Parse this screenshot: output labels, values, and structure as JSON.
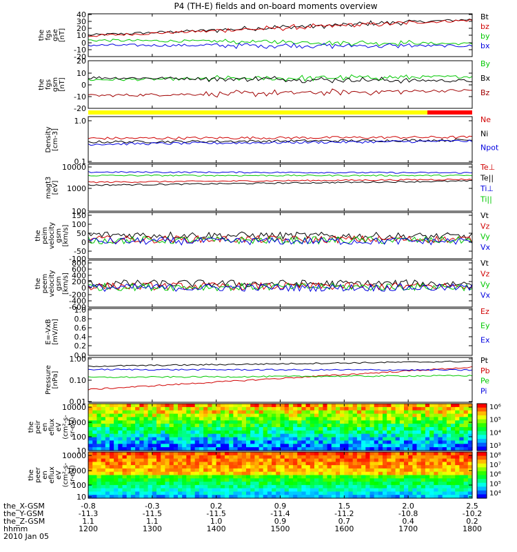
{
  "chart_data": {
    "type": "line",
    "title": "P4 (TH-E) fields and on-board moments overview",
    "x_axis": {
      "rows": [
        {
          "label": "the_X-GSM",
          "values": [
            "-0.8",
            "-0.3",
            "0.2",
            "0.9",
            "1.5",
            "2.0",
            "2.5"
          ]
        },
        {
          "label": "the_Y-GSM",
          "values": [
            "-11.3",
            "-11.5",
            "-11.5",
            "-11.4",
            "-11.2",
            "-10.8",
            "-10.2"
          ]
        },
        {
          "label": "the_Z-GSM",
          "values": [
            "1.1",
            "1.1",
            "1.0",
            "0.9",
            "0.7",
            "0.4",
            "0.2"
          ]
        },
        {
          "label": "hhmm",
          "values": [
            "1200",
            "1300",
            "1400",
            "1500",
            "1600",
            "1700",
            "1800"
          ]
        }
      ],
      "date": "2010 Jan 05",
      "range": [
        1200,
        1800
      ]
    },
    "panels": [
      {
        "ylabel": [
          "the",
          "fgs",
          "gse",
          "[nT]"
        ],
        "scale": "linear",
        "ylim": [
          -20,
          40
        ],
        "ticks": [
          "40",
          "30",
          "20",
          "10",
          "0",
          "-10",
          "-20"
        ],
        "series": [
          {
            "name": "Bt",
            "color": "#000000",
            "level": [
              10,
              32
            ]
          },
          {
            "name": "bz",
            "color": "#d00000",
            "level": [
              9,
              31
            ]
          },
          {
            "name": "by",
            "color": "#00c800",
            "level": [
              3,
              -2
            ]
          },
          {
            "name": "bx",
            "color": "#0000e0",
            "level": [
              -4,
              -5
            ]
          }
        ]
      },
      {
        "ylabel": [
          "the",
          "fgs",
          "gsm",
          "[nT]"
        ],
        "scale": "linear",
        "ylim": [
          -25,
          20
        ],
        "ticks": [
          "20",
          "10",
          "0",
          "-10",
          "-20"
        ],
        "series": [
          {
            "name": "By",
            "color": "#00c800",
            "level": [
              2,
              5
            ]
          },
          {
            "name": "Bx",
            "color": "#000000",
            "level": [
              4,
              1
            ]
          },
          {
            "name": "Bz",
            "color": "#a00000",
            "level": [
              -13,
              -8
            ]
          }
        ]
      },
      {
        "ylabel": [
          "Density",
          "[cm-3]"
        ],
        "scale": "log",
        "ylim": [
          0.1,
          1.5
        ],
        "ticks": [
          "1.0",
          "0.1"
        ],
        "series": [
          {
            "name": "Ne",
            "color": "#d00000",
            "level": [
              0.42,
              0.45
            ]
          },
          {
            "name": "Ni",
            "color": "#000000",
            "level": [
              0.34,
              0.38
            ]
          },
          {
            "name": "Npot",
            "color": "#0000e0",
            "level": [
              0.3,
              0.36
            ]
          }
        ]
      },
      {
        "ylabel": [
          "magt3",
          "[eV]"
        ],
        "scale": "log",
        "ylim": [
          100,
          15000
        ],
        "ticks": [
          "10000",
          "1000",
          "100"
        ],
        "series": [
          {
            "name": "Te⊥",
            "color": "#d00000",
            "level": [
              2200,
              3000
            ]
          },
          {
            "name": "Te||",
            "color": "#000000",
            "level": [
              1600,
              2500
            ]
          },
          {
            "name": "Ti⊥",
            "color": "#0000e0",
            "level": [
              6500,
              6000
            ]
          },
          {
            "name": "Ti||",
            "color": "#00c800",
            "level": [
              4500,
              4500
            ]
          }
        ]
      },
      {
        "ylabel": [
          "the",
          "peim",
          "velocity",
          "gsm",
          "[km/s]"
        ],
        "scale": "linear",
        "ylim": [
          -100,
          150
        ],
        "ticks": [
          "150",
          "100",
          "50",
          "0",
          "-50",
          "-100"
        ],
        "series": [
          {
            "name": "Vt",
            "color": "#000000",
            "level": [
              30,
              20
            ]
          },
          {
            "name": "Vz",
            "color": "#d00000",
            "level": [
              5,
              5
            ]
          },
          {
            "name": "Vy",
            "color": "#00c800",
            "level": [
              0,
              0
            ]
          },
          {
            "name": "Vx",
            "color": "#0000e0",
            "level": [
              -5,
              -5
            ]
          }
        ]
      },
      {
        "ylabel": [
          "the",
          "peem",
          "velocity",
          "gsm",
          "[km/s]"
        ],
        "scale": "linear",
        "ylim": [
          -600,
          800
        ],
        "ticks": [
          "800",
          "600",
          "400",
          "200",
          "0",
          "-200",
          "-400",
          "-600"
        ],
        "series": [
          {
            "name": "Vt",
            "color": "#000000",
            "level": [
              100,
              100
            ]
          },
          {
            "name": "Vz",
            "color": "#d00000",
            "level": [
              20,
              20
            ]
          },
          {
            "name": "Vy",
            "color": "#00c800",
            "level": [
              0,
              0
            ]
          },
          {
            "name": "Vx",
            "color": "#0000e0",
            "level": [
              -20,
              -20
            ]
          }
        ]
      },
      {
        "ylabel": [
          "E=-VxB",
          "[mV/m]"
        ],
        "scale": "linear",
        "ylim": [
          -1,
          1
        ],
        "ticks": [
          "1.0",
          "0.8",
          "0.6",
          "0.4",
          "0.2",
          "0.0"
        ],
        "series": [
          {
            "name": "Ez",
            "color": "#d00000",
            "level": null
          },
          {
            "name": "Ey",
            "color": "#00c800",
            "level": null
          },
          {
            "name": "Ex",
            "color": "#0000e0",
            "level": null
          }
        ]
      },
      {
        "ylabel": [
          "Pressure",
          "[nPa]"
        ],
        "scale": "log",
        "ylim": [
          0.01,
          1.3
        ],
        "ticks": [
          "1.00",
          "0.10",
          "0.01"
        ],
        "series": [
          {
            "name": "Pt",
            "color": "#000000",
            "level": [
              0.5,
              0.85
            ]
          },
          {
            "name": "Pb",
            "color": "#d00000",
            "level": [
              0.04,
              0.45
            ]
          },
          {
            "name": "Pe",
            "color": "#00c800",
            "level": [
              0.15,
              0.18
            ]
          },
          {
            "name": "Pi",
            "color": "#0000e0",
            "level": [
              0.35,
              0.33
            ]
          }
        ]
      },
      {
        "ylabel": [
          "the",
          "peir",
          "en",
          "eflux",
          "eV",
          "(cm²-s-",
          "sr-eV)"
        ],
        "scale": "log",
        "ylim": [
          10,
          15000
        ],
        "ticks": [
          "10000",
          "1000",
          "100",
          "10"
        ],
        "type": "spectrogram",
        "colorbar": {
          "labels": [
            "10⁶",
            "10⁵",
            "10⁴",
            "10³"
          ]
        }
      },
      {
        "ylabel": [
          "the",
          "peer",
          "en",
          "eflux",
          "eV",
          "(cm²-s-",
          "sr-eV)"
        ],
        "scale": "log",
        "ylim": [
          10,
          15000
        ],
        "ticks": [
          "10000",
          "1000",
          "100",
          "10"
        ],
        "type": "spectrogram",
        "colorbar": {
          "labels": [
            "10⁸",
            "10⁷",
            "10⁶",
            "10⁵",
            "10⁴"
          ]
        }
      }
    ],
    "quality_bar": {
      "colors": [
        "#ffff00",
        "#ff0000"
      ],
      "split": 1730
    }
  }
}
